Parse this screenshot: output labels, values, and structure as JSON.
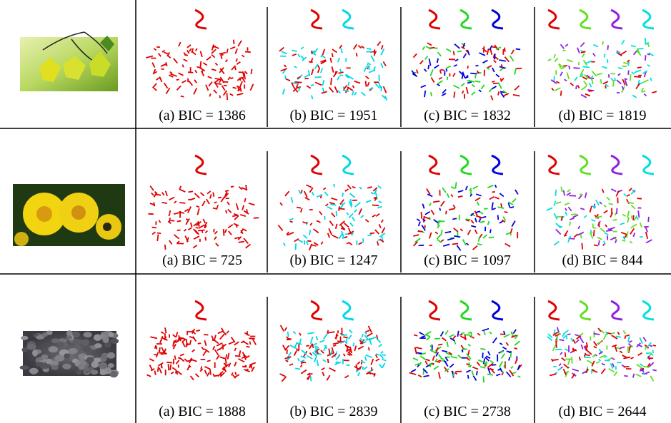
{
  "figure": {
    "rows": [
      {
        "captions": [
          "(a) BIC = 1386",
          "(b) BIC = 1951",
          "(c) BIC = 1832",
          "(d) BIC = 1819"
        ]
      },
      {
        "captions": [
          "(a) BIC = 725",
          "(b) BIC = 1247",
          "(c) BIC = 1097",
          "(d) BIC = 844"
        ]
      },
      {
        "captions": [
          "(a) BIC = 1888",
          "(b) BIC = 2839",
          "(c) BIC = 2738",
          "(d) BIC = 2644"
        ]
      }
    ]
  }
}
